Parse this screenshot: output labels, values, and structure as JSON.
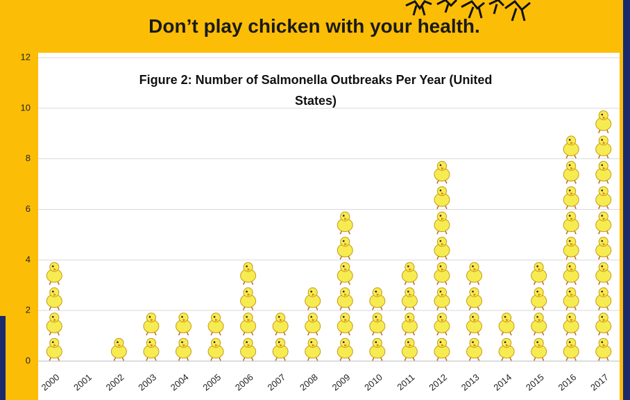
{
  "header": {
    "title": "Don’t play chicken with your health."
  },
  "chart_data": {
    "type": "bar",
    "title": "Figure 2: Number of Salmonella Outbreaks Per Year (United States)",
    "categories": [
      "2000",
      "2001",
      "2002",
      "2003",
      "2004",
      "2005",
      "2006",
      "2007",
      "2008",
      "2009",
      "2010",
      "2011",
      "2012",
      "2013",
      "2014",
      "2015",
      "2016",
      "2017"
    ],
    "values": [
      4,
      0,
      1,
      2,
      2,
      2,
      4,
      2,
      3,
      6,
      3,
      4,
      8,
      4,
      2,
      4,
      9,
      10
    ],
    "color": "#f6ec52",
    "ylim": [
      0,
      12
    ],
    "yticks": [
      0,
      2,
      4,
      6,
      8,
      10,
      12
    ],
    "grid": true
  }
}
